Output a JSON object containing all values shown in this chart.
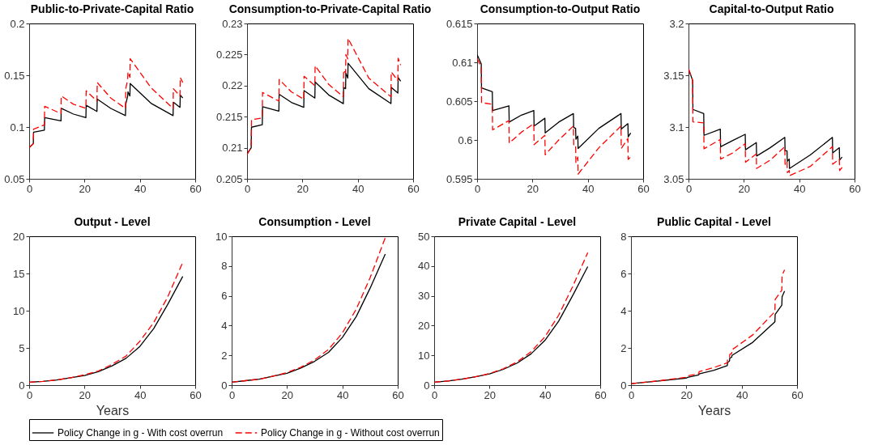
{
  "chart_data": [
    {
      "type": "line",
      "title": "Public-to-Private-Capital Ratio",
      "x": [
        0,
        1.5,
        1.6,
        5.5,
        5.6,
        11.5,
        11.6,
        16,
        20.5,
        20.6,
        24.5,
        24.6,
        29.5,
        34.8,
        34.9,
        35.6,
        35.7,
        36.4,
        36.5,
        44,
        52,
        52.1,
        54.5,
        54.6,
        55.5
      ],
      "xlim": [
        0,
        60
      ],
      "xticks": [
        0,
        20,
        40,
        60
      ],
      "ylim": [
        0.05,
        0.2
      ],
      "yticks": [
        0.05,
        0.1,
        0.15,
        0.2
      ],
      "grid": false,
      "legend": "bottom",
      "series": [
        {
          "name": "Policy Change in g - With cost overrun",
          "color": "#000000",
          "line_style": "solid",
          "values": [
            0.08,
            0.084,
            0.095,
            0.097,
            0.109,
            0.106,
            0.118,
            0.1125,
            0.109,
            0.121,
            0.115,
            0.127,
            0.118,
            0.111,
            0.122,
            0.13,
            0.134,
            0.13,
            0.142,
            0.123,
            0.111,
            0.124,
            0.119,
            0.131,
            0.128
          ]
        },
        {
          "name": "Policy Change in g - Without cost overrun",
          "color": "#ff0000",
          "line_style": "dashed",
          "values": [
            0.08,
            0.084,
            0.098,
            0.102,
            0.12,
            0.113,
            0.13,
            0.122,
            0.118,
            0.135,
            0.125,
            0.143,
            0.128,
            0.118,
            0.137,
            0.146,
            0.153,
            0.148,
            0.166,
            0.138,
            0.118,
            0.137,
            0.13,
            0.148,
            0.143
          ]
        }
      ]
    },
    {
      "type": "line",
      "title": "Consumption-to-Private-Capital Ratio",
      "x": [
        0,
        1.5,
        1.6,
        5.5,
        5.6,
        11.5,
        11.6,
        16,
        20.5,
        20.6,
        24.5,
        24.6,
        29.5,
        34.8,
        34.9,
        35.6,
        35.7,
        36.4,
        36.5,
        44,
        52,
        52.1,
        54.5,
        54.6,
        55.5
      ],
      "xlim": [
        0,
        60
      ],
      "xticks": [
        0,
        20,
        40,
        60
      ],
      "ylim": [
        0.205,
        0.23
      ],
      "yticks": [
        0.205,
        0.21,
        0.215,
        0.22,
        0.225,
        0.23
      ],
      "grid": false,
      "series": [
        {
          "color": "#000000",
          "line_style": "solid",
          "values": [
            0.209,
            0.21,
            0.2133,
            0.2137,
            0.2166,
            0.2159,
            0.2186,
            0.2173,
            0.2165,
            0.2192,
            0.218,
            0.2206,
            0.2185,
            0.2171,
            0.2197,
            0.2195,
            0.222,
            0.2212,
            0.2236,
            0.2195,
            0.2171,
            0.2197,
            0.2188,
            0.2213,
            0.2207
          ]
        },
        {
          "color": "#ff0000",
          "line_style": "dashed",
          "values": [
            0.2089,
            0.2101,
            0.2145,
            0.2148,
            0.2189,
            0.2175,
            0.221,
            0.219,
            0.2178,
            0.2215,
            0.22,
            0.2232,
            0.2202,
            0.2182,
            0.2225,
            0.222,
            0.225,
            0.2243,
            0.2276,
            0.2212,
            0.2182,
            0.2222,
            0.2208,
            0.2244,
            0.2233
          ]
        }
      ]
    },
    {
      "type": "line",
      "title": "Consumption-to-Output Ratio",
      "x": [
        0,
        1.5,
        1.6,
        5.5,
        5.6,
        11.5,
        11.6,
        16,
        20.5,
        20.6,
        24.5,
        24.6,
        29.5,
        34.8,
        34.9,
        35.6,
        35.7,
        36.4,
        36.5,
        44,
        52,
        52.1,
        54.5,
        54.6,
        55.5
      ],
      "xlim": [
        0,
        60
      ],
      "xticks": [
        0,
        20,
        40,
        60
      ],
      "ylim": [
        0.595,
        0.615
      ],
      "yticks": [
        0.595,
        0.6,
        0.605,
        0.61,
        0.615
      ],
      "grid": false,
      "series": [
        {
          "color": "#000000",
          "line_style": "solid",
          "values": [
            0.611,
            0.6098,
            0.6067,
            0.6062,
            0.6038,
            0.6044,
            0.6023,
            0.6032,
            0.6038,
            0.6018,
            0.6028,
            0.6009,
            0.6023,
            0.6034,
            0.6016,
            0.6015,
            0.6001,
            0.6005,
            0.5989,
            0.6015,
            0.6034,
            0.6014,
            0.6021,
            0.6004,
            0.6009
          ]
        },
        {
          "color": "#ff0000",
          "line_style": "dashed",
          "values": [
            0.6105,
            0.6094,
            0.6048,
            0.6046,
            0.6013,
            0.6025,
            0.5996,
            0.601,
            0.6021,
            0.5994,
            0.6006,
            0.5981,
            0.6,
            0.6018,
            0.5994,
            0.5994,
            0.5971,
            0.5978,
            0.5956,
            0.599,
            0.6018,
            0.5989,
            0.6002,
            0.5975,
            0.5978
          ]
        }
      ]
    },
    {
      "type": "line",
      "title": "Capital-to-Output Ratio",
      "x": [
        0,
        1.5,
        1.6,
        5.5,
        5.6,
        11.5,
        11.6,
        16,
        20.5,
        20.6,
        24.5,
        24.6,
        29.5,
        34.8,
        34.9,
        35.6,
        35.7,
        36.4,
        36.5,
        44,
        52,
        52.1,
        54.5,
        54.6,
        55.5
      ],
      "xlim": [
        0,
        60
      ],
      "xticks": [
        0,
        20,
        40,
        60
      ],
      "ylim": [
        3.05,
        3.2
      ],
      "yticks": [
        3.05,
        3.1,
        3.15,
        3.2
      ],
      "grid": false,
      "series": [
        {
          "color": "#000000",
          "line_style": "solid",
          "values": [
            3.156,
            3.145,
            3.117,
            3.113,
            3.092,
            3.098,
            3.081,
            3.087,
            3.093,
            3.078,
            3.085,
            3.072,
            3.08,
            3.09,
            3.077,
            3.077,
            3.067,
            3.069,
            3.06,
            3.073,
            3.09,
            3.075,
            3.08,
            3.068,
            3.071
          ]
        },
        {
          "color": "#ff0000",
          "line_style": "dashed",
          "values": [
            3.156,
            3.145,
            3.105,
            3.104,
            3.079,
            3.088,
            3.069,
            3.075,
            3.084,
            3.066,
            3.074,
            3.06,
            3.068,
            3.081,
            3.064,
            3.067,
            3.056,
            3.058,
            3.053,
            3.062,
            3.081,
            3.064,
            3.069,
            3.058,
            3.061
          ]
        }
      ]
    },
    {
      "type": "line",
      "title": "Output - Level",
      "xlabel": "Years",
      "x": [
        0,
        5,
        10,
        15,
        20,
        25,
        30,
        35,
        40,
        45,
        50,
        55.5
      ],
      "xlim": [
        0,
        60
      ],
      "xticks": [
        0,
        20,
        40,
        60
      ],
      "ylim": [
        0,
        20
      ],
      "yticks": [
        0,
        5,
        10,
        15,
        20
      ],
      "grid": false,
      "series": [
        {
          "color": "#000000",
          "line_style": "solid",
          "values": [
            0.4,
            0.5,
            0.7,
            1,
            1.3,
            1.8,
            2.6,
            3.6,
            5.2,
            7.6,
            10.8,
            14.6
          ]
        },
        {
          "color": "#ff0000",
          "line_style": "dashed",
          "values": [
            0.4,
            0.5,
            0.7,
            1,
            1.4,
            1.9,
            2.8,
            3.9,
            5.9,
            8.4,
            11.8,
            16.5
          ]
        }
      ]
    },
    {
      "type": "line",
      "title": "Consumption - Level",
      "x": [
        0,
        5,
        10,
        15,
        20,
        25,
        30,
        35,
        40,
        45,
        50,
        55.5
      ],
      "xlim": [
        0,
        60
      ],
      "xticks": [
        0,
        20,
        40,
        60
      ],
      "ylim": [
        0,
        10
      ],
      "yticks": [
        0,
        2,
        4,
        6,
        8,
        10
      ],
      "grid": false,
      "series": [
        {
          "color": "#000000",
          "line_style": "solid",
          "values": [
            0.2,
            0.3,
            0.4,
            0.6,
            0.8,
            1.15,
            1.6,
            2.2,
            3.2,
            4.6,
            6.5,
            8.8
          ]
        },
        {
          "color": "#ff0000",
          "line_style": "dashed",
          "values": [
            0.2,
            0.3,
            0.4,
            0.6,
            0.85,
            1.2,
            1.7,
            2.4,
            3.5,
            5.1,
            7.2,
            9.9
          ]
        }
      ]
    },
    {
      "type": "line",
      "title": "Private Capital - Level",
      "x": [
        0,
        5,
        10,
        15,
        20,
        25,
        30,
        35,
        40,
        45,
        50,
        55.5
      ],
      "xlim": [
        0,
        60
      ],
      "xticks": [
        0,
        20,
        40,
        60
      ],
      "ylim": [
        0,
        50
      ],
      "yticks": [
        0,
        10,
        20,
        30,
        40,
        50
      ],
      "grid": false,
      "series": [
        {
          "color": "#000000",
          "line_style": "solid",
          "values": [
            1,
            1.4,
            2,
            2.8,
            3.8,
            5.3,
            7.4,
            10.5,
            15,
            21.5,
            30,
            39.8
          ]
        },
        {
          "color": "#ff0000",
          "line_style": "dashed",
          "values": [
            1,
            1.4,
            2,
            2.8,
            3.9,
            5.5,
            7.8,
            11.2,
            16.2,
            23.5,
            33,
            44.5
          ]
        }
      ]
    },
    {
      "type": "line",
      "title": "Public Capital - Level",
      "xlabel": "Years",
      "x": [
        0,
        10,
        20,
        20.5,
        24.5,
        24.6,
        30,
        34.8,
        34.9,
        35.6,
        35.7,
        36.4,
        36.5,
        44,
        52,
        52.1,
        54.5,
        54.6,
        55.5
      ],
      "xlim": [
        0,
        60
      ],
      "xticks": [
        0,
        20,
        40,
        60
      ],
      "ylim": [
        0,
        8
      ],
      "yticks": [
        0,
        2,
        4,
        6,
        8
      ],
      "grid": false,
      "series": [
        {
          "color": "#000000",
          "line_style": "solid",
          "values": [
            0.08,
            0.22,
            0.38,
            0.42,
            0.55,
            0.6,
            0.8,
            1.05,
            1.2,
            1.3,
            1.45,
            1.5,
            1.6,
            2.3,
            3.4,
            3.8,
            4.3,
            4.75,
            5.05
          ]
        },
        {
          "color": "#ff0000",
          "line_style": "dashed",
          "values": [
            0.08,
            0.23,
            0.42,
            0.5,
            0.62,
            0.72,
            0.95,
            1.2,
            1.4,
            1.5,
            1.65,
            1.7,
            1.9,
            2.7,
            3.95,
            4.6,
            5.1,
            5.9,
            6.2
          ]
        }
      ]
    }
  ]
}
